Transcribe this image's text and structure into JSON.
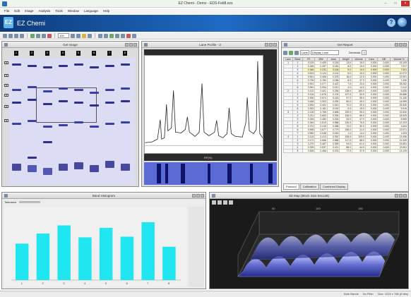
{
  "window": {
    "title": "EZ Chemi - Demo - EDS-Feb8.ezs"
  },
  "menu": [
    "File",
    "Edit",
    "Image",
    "Analysis",
    "Tools",
    "Window",
    "Language",
    "Help"
  ],
  "banner": {
    "logo_text": "EZ",
    "app_name": "EZ Chemi",
    "help_icon": "question-icon",
    "globe_icon": "globe-icon"
  },
  "toolbar": {
    "zoom_value": "100"
  },
  "gel_image": {
    "title": "Gel Image",
    "lane_tags": [
      "1",
      "2",
      "3",
      "4",
      "5",
      "6",
      "7",
      "8"
    ],
    "marker_labels": [
      "M",
      "M",
      "M",
      "M",
      "M",
      "M"
    ]
  },
  "lane_profile": {
    "title": "Lane Profile - 3",
    "x_axis_label": "RF(%)"
  },
  "gel_report": {
    "title": "Gel Report",
    "lane_select": "Lane",
    "display_select": "Display Lane",
    "decimal_label": "Decimals",
    "decimal_value": "3",
    "columns": [
      "Lane",
      "Band",
      "Rf",
      "MW",
      "Area",
      "Height",
      "Volume",
      "Conc",
      "Diff",
      "Volume %"
    ],
    "rows": [
      [
        "1",
        "1",
        "0.115",
        "0.405",
        "0.218",
        "13.0",
        "15.0",
        "0.000",
        "0.000",
        "15.105"
      ],
      [
        "",
        "2",
        "0.245",
        "0.257",
        "0.150",
        "8.0",
        "13.0",
        "0.000",
        "0.000",
        "7.917"
      ],
      [
        "",
        "3",
        "0.346",
        "0.231",
        "0.146",
        "9.0",
        "14.0",
        "0.000",
        "0.000",
        "7.901"
      ],
      [
        "",
        "4",
        "0.513",
        "0.124",
        "0.102",
        "5.0",
        "10.0",
        "0.000",
        "0.000",
        "10.072"
      ],
      [
        "",
        "5",
        "0.541",
        "0.465",
        "0.375",
        "18.0",
        "22.0",
        "0.000",
        "0.000",
        "22.901"
      ],
      [
        "",
        "6",
        "0.726",
        "0.190",
        "0.186",
        "6.0",
        "37.0",
        "0.000",
        "0.000",
        "7.430"
      ],
      [
        "",
        "7",
        "0.901",
        "0.077",
        "0.422",
        "7.0",
        "23.0",
        "0.000",
        "0.000",
        "28.262"
      ],
      [
        "",
        "8",
        "0.951",
        "0.054",
        "0.012",
        "4.0",
        "14.0",
        "0.000",
        "0.000",
        "0.412"
      ],
      [
        "2",
        "1",
        "0.122",
        "0.401",
        "0.256",
        "138.0",
        "160.0",
        "0.000",
        "0.000",
        "5.635"
      ],
      [
        "",
        "2",
        "0.134",
        "0.676",
        "0.700",
        "137.0",
        "92.0",
        "0.000",
        "0.000",
        "26.886"
      ],
      [
        "",
        "3",
        "0.306",
        "0.574",
        "0.415",
        "97.0",
        "55.0",
        "0.000",
        "0.000",
        "21.430"
      ],
      [
        "",
        "4",
        "0.448",
        "0.303",
        "0.290",
        "80.0",
        "49.0",
        "0.000",
        "0.000",
        "14.595"
      ],
      [
        "",
        "5",
        "0.594",
        "0.402",
        "0.310",
        "74.0",
        "29.0",
        "0.000",
        "0.000",
        "29.340"
      ],
      [
        "",
        "6",
        "0.933",
        "0.181",
        "0.130",
        "5.0",
        "15.0",
        "0.000",
        "0.000",
        "9.615"
      ],
      [
        "3",
        "1",
        "0.126",
        "0.765",
        "0.658",
        "159.0",
        "95.0",
        "0.000",
        "0.000",
        "22.840"
      ],
      [
        "",
        "2",
        "0.211",
        "0.663",
        "0.394",
        "106.0",
        "66.0",
        "0.000",
        "0.000",
        "18.525"
      ],
      [
        "",
        "3",
        "0.325",
        "0.480",
        "0.332",
        "94.0",
        "47.0",
        "0.000",
        "0.000",
        "8.965"
      ],
      [
        "",
        "4",
        "0.394",
        "0.519",
        "0.588",
        "130.0",
        "70.0",
        "0.000",
        "0.000",
        "12.223"
      ],
      [
        "",
        "5",
        "0.701",
        "0.419",
        "0.288",
        "72.0",
        "30.0",
        "0.000",
        "0.000",
        "2.634"
      ],
      [
        "",
        "6",
        "0.908",
        "0.577",
        "0.779",
        "156.0",
        "21.0",
        "0.000",
        "0.000",
        "22.571"
      ],
      [
        "",
        "7",
        "0.952",
        "0.048",
        "0.016",
        "1.0",
        "14.0",
        "0.000",
        "0.000",
        "1.623"
      ],
      [
        "4",
        "1",
        "0.124",
        "0.413",
        "0.392",
        "108.0",
        "109.0",
        "0.000",
        "0.000",
        "13.496"
      ],
      [
        "",
        "2",
        "0.171",
        "0.666",
        "0.586",
        "117.0",
        "68.0",
        "0.000",
        "0.000",
        "21.949"
      ],
      [
        "",
        "3",
        "0.270",
        "0.467",
        "0.399",
        "94.0",
        "61.0",
        "0.000",
        "0.000",
        "15.551"
      ],
      [
        "",
        "4",
        "0.325",
        "0.537",
        "0.411",
        "88.0",
        "44.0",
        "0.000",
        "0.000",
        "20.811"
      ],
      [
        "",
        "5",
        "0.526",
        "0.466",
        "0.376",
        "77.0",
        "37.0",
        "0.000",
        "0.000",
        "13.125"
      ]
    ],
    "tabs": [
      "Protocol",
      "Calibration",
      "Combined Display"
    ]
  },
  "band_histogram": {
    "title": "Band Histogram",
    "tolerance_label": "Tolerance",
    "chart_data": {
      "type": "bar",
      "categories": [
        "1",
        "2",
        "3",
        "4",
        "5",
        "6",
        "7",
        "8"
      ],
      "values": [
        0.58,
        0.74,
        0.87,
        0.68,
        0.83,
        0.69,
        0.92,
        0.53
      ],
      "ylim": [
        0,
        1.1
      ],
      "bar_color": "#1fe6f0"
    }
  },
  "map_3d": {
    "title": "3D Map (Block Size 64x128)"
  },
  "status": {
    "segments": [
      "Both Bands",
      "No Filter",
      "Size: 1024 x 768 (8 bits)"
    ]
  },
  "colors": {
    "banner": "#1f6bc4",
    "gel_background": "#dcdcf4",
    "band_dark": "#2b2f8e",
    "histogram_bar": "#1fe6f0"
  }
}
